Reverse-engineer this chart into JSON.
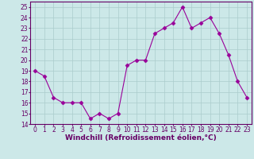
{
  "x": [
    0,
    1,
    2,
    3,
    4,
    5,
    6,
    7,
    8,
    9,
    10,
    11,
    12,
    13,
    14,
    15,
    16,
    17,
    18,
    19,
    20,
    21,
    22,
    23
  ],
  "y": [
    19,
    18.5,
    16.5,
    16,
    16,
    16,
    14.5,
    15,
    14.5,
    15,
    19.5,
    20,
    20,
    22.5,
    23,
    23.5,
    25,
    23,
    23.5,
    24,
    22.5,
    20.5,
    18,
    16.5
  ],
  "line_color": "#990099",
  "marker": "D",
  "marker_size": 2.5,
  "bg_color": "#cce8e8",
  "grid_color": "#aacccc",
  "xlabel": "Windchill (Refroidissement éolien,°C)",
  "xlim": [
    -0.5,
    23.5
  ],
  "ylim": [
    14,
    25.5
  ],
  "yticks": [
    14,
    15,
    16,
    17,
    18,
    19,
    20,
    21,
    22,
    23,
    24,
    25
  ],
  "xticks": [
    0,
    1,
    2,
    3,
    4,
    5,
    6,
    7,
    8,
    9,
    10,
    11,
    12,
    13,
    14,
    15,
    16,
    17,
    18,
    19,
    20,
    21,
    22,
    23
  ],
  "tick_fontsize": 5.5,
  "xlabel_fontsize": 6.5,
  "line_color_spine": "#660066"
}
